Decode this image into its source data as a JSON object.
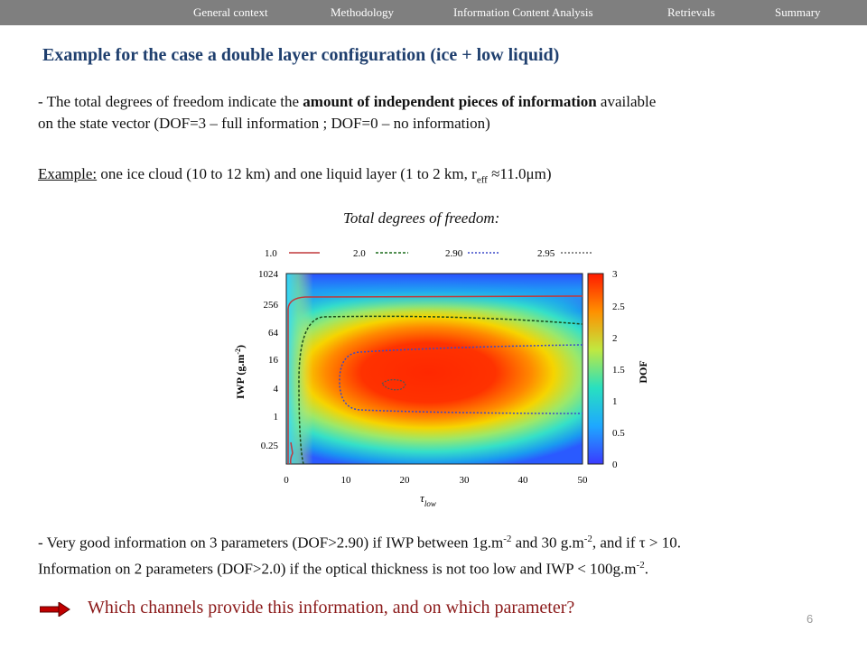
{
  "nav": {
    "items": [
      "General context",
      "Methodology",
      "Information Content Analysis",
      "Retrievals",
      "Summary"
    ]
  },
  "title": "Example for the case a double layer configuration (ice + low liquid)",
  "para1": {
    "line1_pre": "- The total degrees of freedom indicate the ",
    "line1_bold": "amount of independent pieces of information",
    "line1_post": " available",
    "line2": "on the state vector (DOF=3 – full information ; DOF=0 – no information)"
  },
  "example": {
    "label": "Example:",
    "text_pre": " one ice cloud (10 to 12 km) and one liquid layer (1 to 2 km, r",
    "sub": "eff",
    "text_post": " ≈11.0μm)"
  },
  "caption": "Total degrees of freedom:",
  "chart_data": {
    "type": "heatmap",
    "xlabel": "τ",
    "xlabel_sub": "low",
    "ylabel": "IWP (g.m-2)",
    "x_ticks": [
      "0",
      "10",
      "20",
      "30",
      "40",
      "50"
    ],
    "y_ticks": [
      "1024",
      "256",
      "64",
      "16",
      "4",
      "1",
      "0.25"
    ],
    "xlim": [
      0,
      50
    ],
    "colorbar": {
      "label": "DOF",
      "ticks": [
        "3",
        "2.5",
        "2",
        "1.5",
        "1",
        "0.5",
        "0"
      ],
      "range": [
        0,
        3
      ]
    },
    "legend": [
      {
        "label": "1.0",
        "color": "#c0393b",
        "style": "solid"
      },
      {
        "label": "2.0",
        "color": "#1a6b1a",
        "style": "dashed"
      },
      {
        "label": "2.90",
        "color": "#3b49c9",
        "style": "dotted"
      },
      {
        "label": "2.95",
        "color": "#666666",
        "style": "dotted"
      }
    ]
  },
  "para2": {
    "line1_pre": "- Very good information on 3 parameters (DOF>2.90) if IWP between 1g.m",
    "line1_sup1": "-2",
    "line1_mid": " and 30 g.m",
    "line1_sup2": "-2",
    "line1_post": ", and if τ > 10.",
    "line2_pre": "Information on 2 parameters (DOF>2.0) if the optical thickness is not too low and IWP < 100g.m",
    "line2_sup": "-2",
    "line2_post": "."
  },
  "question": "Which channels provide this information, and on which parameter?",
  "page_number": "6",
  "colors": {
    "nav_bg": "#7f7f7f",
    "title": "#1f3f6e",
    "question": "#8b1a1a",
    "arrow": "#c00000"
  }
}
